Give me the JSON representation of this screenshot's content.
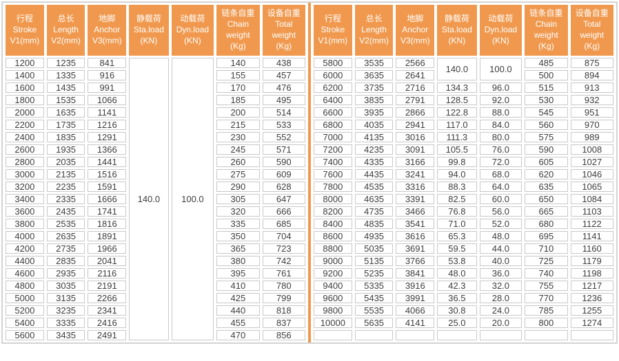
{
  "colors": {
    "header_bg": "#F0994E",
    "header_text": "#FFFFFF",
    "cell_border": "#C8C8C8",
    "outer_border": "#D3D3D3",
    "divider": "#F0994E",
    "cell_text": "#3D3D3D"
  },
  "table": {
    "column_headers": [
      {
        "id": "stroke",
        "lines": [
          "行程",
          "Stroke",
          "V1(mm)"
        ]
      },
      {
        "id": "length",
        "lines": [
          "总长",
          "Length",
          "V2(mm)"
        ]
      },
      {
        "id": "anchor",
        "lines": [
          "地脚",
          "Anchor",
          "V3(mm)"
        ]
      },
      {
        "id": "sta-load",
        "lines": [
          "静载荷",
          "Sta.load",
          "(KN)"
        ]
      },
      {
        "id": "dyn-load",
        "lines": [
          "动载荷",
          "Dyn.load",
          "(KN)"
        ]
      },
      {
        "id": "chain-weight",
        "lines": [
          "链条自重",
          "Chain",
          "weight",
          "(Kg)"
        ]
      },
      {
        "id": "total-weight",
        "lines": [
          "设备自重",
          "Total",
          "weight",
          "(Kg)"
        ]
      }
    ],
    "left": {
      "rows": [
        [
          "1200",
          "1235",
          "841",
          {
            "v": "140.0",
            "rowspan": 23
          },
          {
            "v": "100.0",
            "rowspan": 23
          },
          "140",
          "438"
        ],
        [
          "1400",
          "1335",
          "916",
          null,
          null,
          "155",
          "457"
        ],
        [
          "1600",
          "1435",
          "991",
          null,
          null,
          "170",
          "476"
        ],
        [
          "1800",
          "1535",
          "1066",
          null,
          null,
          "185",
          "495"
        ],
        [
          "2000",
          "1635",
          "1141",
          null,
          null,
          "200",
          "514"
        ],
        [
          "2200",
          "1735",
          "1216",
          null,
          null,
          "215",
          "533"
        ],
        [
          "2400",
          "1835",
          "1291",
          null,
          null,
          "230",
          "552"
        ],
        [
          "2600",
          "1935",
          "1366",
          null,
          null,
          "245",
          "571"
        ],
        [
          "2800",
          "2035",
          "1441",
          null,
          null,
          "260",
          "590"
        ],
        [
          "3000",
          "2135",
          "1516",
          null,
          null,
          "275",
          "609"
        ],
        [
          "3200",
          "2235",
          "1591",
          null,
          null,
          "290",
          "628"
        ],
        [
          "3400",
          "2335",
          "1666",
          null,
          null,
          "305",
          "647"
        ],
        [
          "3600",
          "2435",
          "1741",
          null,
          null,
          "320",
          "666"
        ],
        [
          "3800",
          "2535",
          "1816",
          null,
          null,
          "335",
          "685"
        ],
        [
          "4000",
          "2635",
          "1891",
          null,
          null,
          "350",
          "704"
        ],
        [
          "4200",
          "2735",
          "1966",
          null,
          null,
          "365",
          "723"
        ],
        [
          "4400",
          "2835",
          "2041",
          null,
          null,
          "380",
          "742"
        ],
        [
          "4600",
          "2935",
          "2116",
          null,
          null,
          "395",
          "761"
        ],
        [
          "4800",
          "3035",
          "2191",
          null,
          null,
          "410",
          "780"
        ],
        [
          "5000",
          "3135",
          "2266",
          null,
          null,
          "425",
          "799"
        ],
        [
          "5200",
          "3235",
          "2341",
          null,
          null,
          "440",
          "818"
        ],
        [
          "5400",
          "3335",
          "2416",
          null,
          null,
          "455",
          "837"
        ],
        [
          "5600",
          "3435",
          "2491",
          null,
          null,
          "470",
          "856"
        ]
      ]
    },
    "right": {
      "rows": [
        [
          "5800",
          "3535",
          "2566",
          {
            "v": "140.0",
            "rowspan": 2
          },
          {
            "v": "100.0",
            "rowspan": 2
          },
          "485",
          "875"
        ],
        [
          "6000",
          "3635",
          "2641",
          null,
          null,
          "500",
          "894"
        ],
        [
          "6200",
          "3735",
          "2716",
          "134.3",
          "96.0",
          "515",
          "913"
        ],
        [
          "6400",
          "3835",
          "2791",
          "128.5",
          "92.0",
          "530",
          "932"
        ],
        [
          "6600",
          "3935",
          "2866",
          "122.8",
          "88.0",
          "545",
          "951"
        ],
        [
          "6800",
          "4035",
          "2941",
          "117.0",
          "84.0",
          "560",
          "970"
        ],
        [
          "7000",
          "4135",
          "3016",
          "111.3",
          "80.0",
          "575",
          "989"
        ],
        [
          "7200",
          "4235",
          "3091",
          "105.5",
          "76.0",
          "590",
          "1008"
        ],
        [
          "7400",
          "4335",
          "3166",
          "99.8",
          "72.0",
          "605",
          "1027"
        ],
        [
          "7600",
          "4435",
          "3241",
          "94.0",
          "68.0",
          "620",
          "1046"
        ],
        [
          "7800",
          "4535",
          "3316",
          "88.3",
          "64.0",
          "635",
          "1065"
        ],
        [
          "8000",
          "4635",
          "3391",
          "82.5",
          "60.0",
          "650",
          "1084"
        ],
        [
          "8200",
          "4735",
          "3466",
          "76.8",
          "56.0",
          "665",
          "1103"
        ],
        [
          "8400",
          "4835",
          "3541",
          "71.0",
          "52.0",
          "680",
          "1122"
        ],
        [
          "8600",
          "4935",
          "3616",
          "65.3",
          "48.0",
          "695",
          "1141"
        ],
        [
          "8800",
          "5035",
          "3691",
          "59.5",
          "44.0",
          "710",
          "1160"
        ],
        [
          "9000",
          "5135",
          "3766",
          "53.8",
          "40.0",
          "725",
          "1179"
        ],
        [
          "9200",
          "5235",
          "3841",
          "48.0",
          "36.0",
          "740",
          "1198"
        ],
        [
          "9400",
          "5335",
          "3916",
          "42.3",
          "32.0",
          "755",
          "1217"
        ],
        [
          "9600",
          "5435",
          "3991",
          "36.5",
          "28.0",
          "770",
          "1236"
        ],
        [
          "9800",
          "5535",
          "4066",
          "30.8",
          "24.0",
          "785",
          "1255"
        ],
        [
          "10000",
          "5635",
          "4141",
          "25.0",
          "20.0",
          "800",
          "1274"
        ],
        [
          "",
          "",
          "",
          "",
          "",
          "",
          ""
        ]
      ]
    }
  }
}
